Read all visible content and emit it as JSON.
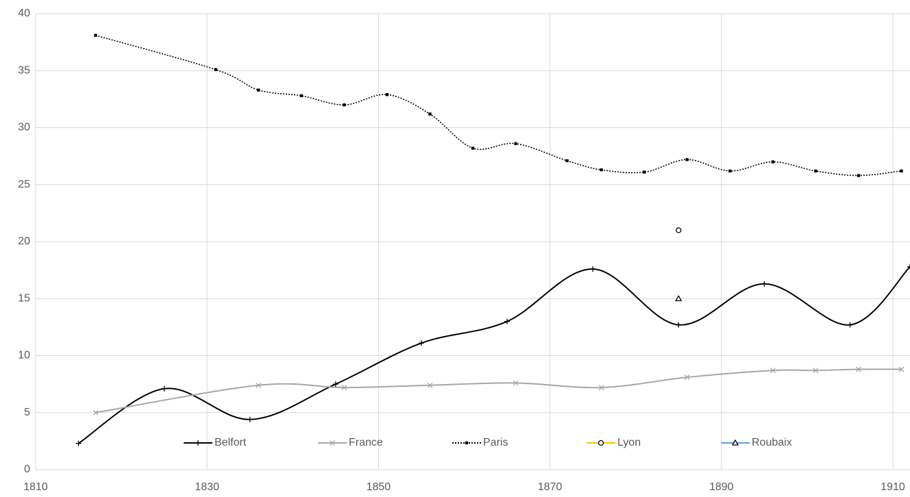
{
  "chart_data": {
    "type": "line",
    "xlim": [
      1810,
      1912
    ],
    "xticks": [
      1810,
      1830,
      1850,
      1870,
      1890,
      1910
    ],
    "ylim": [
      0,
      40
    ],
    "yticks": [
      0,
      5,
      10,
      15,
      20,
      25,
      30,
      35,
      40
    ],
    "grid": true,
    "legend": "bottom",
    "smooth": true,
    "series": [
      {
        "name": "Belfort",
        "color": "#000000",
        "marker": "plus",
        "dash": "solid",
        "x": [
          1815,
          1825,
          1835,
          1845,
          1855,
          1865,
          1875,
          1885,
          1895,
          1905,
          1912
        ],
        "values": [
          2.3,
          7.1,
          4.4,
          7.5,
          11.1,
          13,
          17.6,
          12.7,
          16.3,
          12.7,
          17.8
        ]
      },
      {
        "name": "France",
        "color": "#a6a6a6",
        "marker": "x",
        "dash": "solid",
        "x": [
          1817,
          1836,
          1846,
          1856,
          1866,
          1876,
          1886,
          1896,
          1901,
          1906,
          1911
        ],
        "values": [
          5,
          7.4,
          7.2,
          7.4,
          7.6,
          7.2,
          8.1,
          8.7,
          8.7,
          8.8,
          8.8
        ]
      },
      {
        "name": "Paris",
        "color": "#000000",
        "marker": "square",
        "dash": "dotted",
        "x": [
          1817,
          1831,
          1836,
          1841,
          1846,
          1851,
          1856,
          1861,
          1866,
          1872,
          1876,
          1881,
          1886,
          1891,
          1896,
          1901,
          1906,
          1911
        ],
        "values": [
          38.1,
          35.1,
          33.3,
          32.8,
          32,
          32.9,
          31.2,
          28.2,
          28.6,
          27.1,
          26.3,
          26.1,
          27.2,
          26.2,
          27,
          26.2,
          25.8,
          26.2
        ]
      },
      {
        "name": "Lyon",
        "color": "#ffc000",
        "marker": "circle",
        "dash": "solid",
        "x": [
          1885
        ],
        "values": [
          21
        ]
      },
      {
        "name": "Roubaix",
        "color": "#5b9bd5",
        "marker": "triangle",
        "dash": "solid",
        "x": [
          1885
        ],
        "values": [
          15
        ]
      }
    ]
  }
}
